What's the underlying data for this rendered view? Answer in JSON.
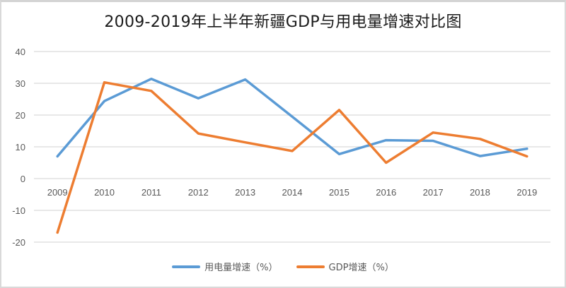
{
  "chart_data": {
    "type": "line",
    "title": "2009-2019年上半年新疆GDP与用电量增速对比图",
    "xlabel": "",
    "ylabel": "",
    "categories": [
      "2009",
      "2010",
      "2011",
      "2012",
      "2013",
      "2014",
      "2015",
      "2016",
      "2017",
      "2018",
      "2019"
    ],
    "ylim": [
      -20,
      40
    ],
    "yticks": [
      40,
      30,
      20,
      10,
      0,
      -10,
      -20
    ],
    "grid": true,
    "legend_position": "bottom",
    "series": [
      {
        "name": "用电量增速（%）",
        "color": "#5b9bd5",
        "values": [
          7.0,
          24.4,
          31.4,
          25.3,
          31.2,
          19.5,
          7.7,
          12.1,
          11.9,
          7.1,
          9.4
        ]
      },
      {
        "name": "GDP增速（%）",
        "color": "#ed7d31",
        "values": [
          -17.0,
          30.3,
          27.6,
          14.2,
          11.4,
          8.7,
          21.6,
          5.0,
          14.5,
          12.5,
          7.0
        ]
      }
    ]
  }
}
